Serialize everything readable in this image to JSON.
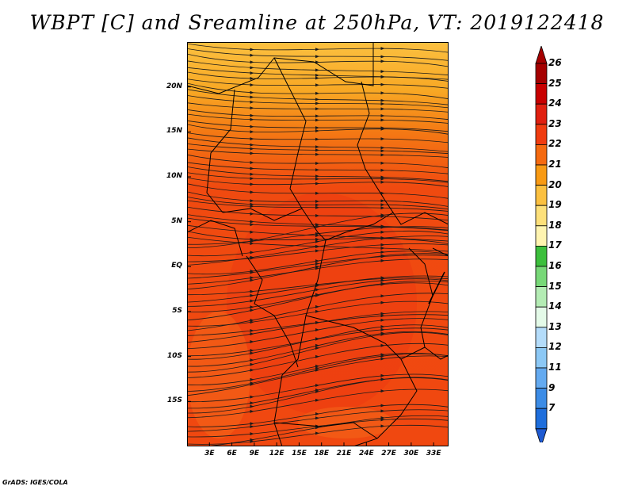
{
  "title": "WBPT [C] and Sreamline at 250hPa, VT: 2019122418",
  "credit": "GrADS: IGES/COLA",
  "map": {
    "lon_range": [
      0,
      35
    ],
    "lat_range": [
      -20,
      25
    ],
    "lat_ticks": [
      {
        "value": 20,
        "label": "20N"
      },
      {
        "value": 15,
        "label": "15N"
      },
      {
        "value": 10,
        "label": "10N"
      },
      {
        "value": 5,
        "label": "5N"
      },
      {
        "value": 0,
        "label": "EQ"
      },
      {
        "value": -5,
        "label": "5S"
      },
      {
        "value": -10,
        "label": "10S"
      },
      {
        "value": -15,
        "label": "15S"
      }
    ],
    "lon_ticks": [
      {
        "value": 3,
        "label": "3E"
      },
      {
        "value": 6,
        "label": "6E"
      },
      {
        "value": 9,
        "label": "9E"
      },
      {
        "value": 12,
        "label": "12E"
      },
      {
        "value": 15,
        "label": "15E"
      },
      {
        "value": 18,
        "label": "18E"
      },
      {
        "value": 21,
        "label": "21E"
      },
      {
        "value": 24,
        "label": "24E"
      },
      {
        "value": 27,
        "label": "27E"
      },
      {
        "value": 30,
        "label": "30E"
      },
      {
        "value": 33,
        "label": "33E"
      }
    ]
  },
  "colorbar": {
    "levels": [
      {
        "label": "26",
        "color": "#a50000"
      },
      {
        "label": "25",
        "color": "#c80000"
      },
      {
        "label": "24",
        "color": "#e02010"
      },
      {
        "label": "23",
        "color": "#f03c10"
      },
      {
        "label": "22",
        "color": "#f56a10"
      },
      {
        "label": "21",
        "color": "#f89a14"
      },
      {
        "label": "20",
        "color": "#fbc040"
      },
      {
        "label": "19",
        "color": "#fde07a"
      },
      {
        "label": "18",
        "color": "#fff4b0"
      },
      {
        "label": "17",
        "color": "#3cbf3c"
      },
      {
        "label": "16",
        "color": "#78d878"
      },
      {
        "label": "15",
        "color": "#b4ecb4"
      },
      {
        "label": "14",
        "color": "#e4fae8"
      },
      {
        "label": "13",
        "color": "#b4dcfa"
      },
      {
        "label": "12",
        "color": "#8cc8f5"
      },
      {
        "label": "11",
        "color": "#64aaf0"
      },
      {
        "label": "9",
        "color": "#3c8ce6"
      },
      {
        "label": "7",
        "color": "#1e6edc"
      }
    ],
    "bottom_color": "#1e5ad2"
  }
}
